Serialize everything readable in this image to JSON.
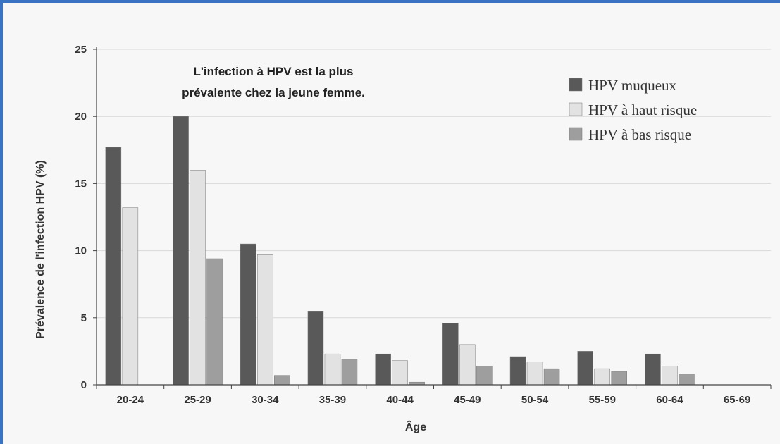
{
  "chart_data": {
    "type": "bar",
    "title": "",
    "annotation": [
      "L'infection à HPV est la plus",
      "prévalente chez la jeune femme."
    ],
    "xlabel": "Âge",
    "ylabel": "Prévalence de l'infection HPV (%)",
    "ylim": [
      0,
      25
    ],
    "yticks": [
      0,
      5,
      10,
      15,
      20,
      25
    ],
    "grid": true,
    "legend_position": "top-right",
    "categories": [
      "20-24",
      "25-29",
      "30-34",
      "35-39",
      "40-44",
      "45-49",
      "50-54",
      "55-59",
      "60-64",
      "65-69"
    ],
    "series": [
      {
        "name": "HPV muqueux",
        "color": "#595959",
        "values": [
          17.7,
          20.0,
          10.5,
          5.5,
          2.3,
          4.6,
          2.1,
          2.5,
          2.3,
          0
        ]
      },
      {
        "name": "HPV à haut risque",
        "color": "#e2e2e2",
        "values": [
          13.2,
          16.0,
          9.7,
          2.3,
          1.8,
          3.0,
          1.7,
          1.2,
          1.4,
          0
        ]
      },
      {
        "name": "HPV à bas risque",
        "color": "#9e9e9e",
        "values": [
          0,
          9.4,
          0.7,
          1.9,
          0.2,
          1.4,
          1.2,
          1.0,
          0.8,
          0
        ]
      }
    ]
  }
}
